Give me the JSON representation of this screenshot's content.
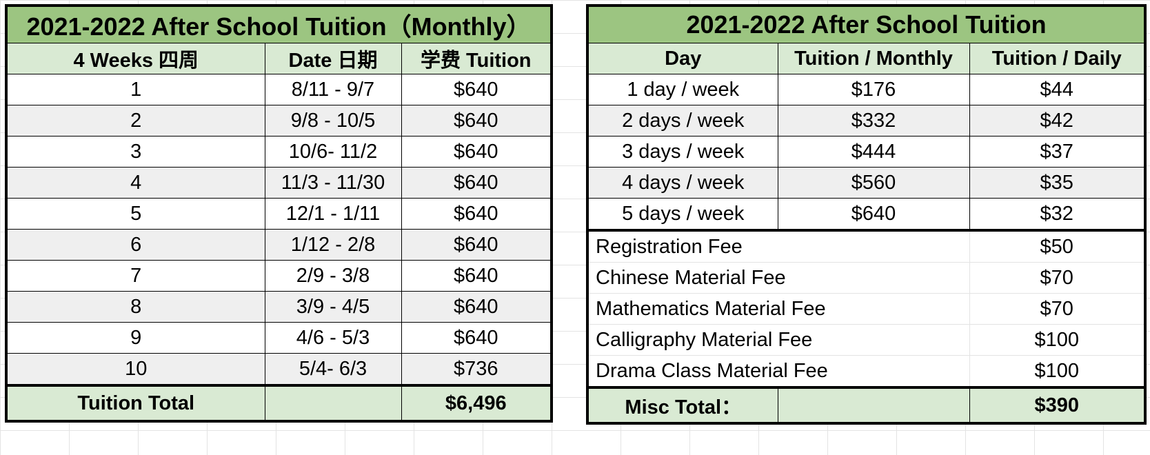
{
  "monthly_table": {
    "title": "2021-2022 After School Tuition（Monthly）",
    "headers": [
      "4 Weeks 四周",
      "Date 日期",
      "学费 Tuition"
    ],
    "rows": [
      {
        "week": "1",
        "date": "8/11 - 9/7",
        "tuition": "$640"
      },
      {
        "week": "2",
        "date": "9/8 - 10/5",
        "tuition": "$640"
      },
      {
        "week": "3",
        "date": "10/6- 11/2",
        "tuition": "$640"
      },
      {
        "week": "4",
        "date": "11/3 - 11/30",
        "tuition": "$640"
      },
      {
        "week": "5",
        "date": "12/1 - 1/11",
        "tuition": "$640"
      },
      {
        "week": "6",
        "date": "1/12 - 2/8",
        "tuition": "$640"
      },
      {
        "week": "7",
        "date": "2/9 - 3/8",
        "tuition": "$640"
      },
      {
        "week": "8",
        "date": "3/9 - 4/5",
        "tuition": "$640"
      },
      {
        "week": "9",
        "date": "4/6 - 5/3",
        "tuition": "$640"
      },
      {
        "week": "10",
        "date": "5/4- 6/3",
        "tuition": "$736"
      }
    ],
    "total_label": "Tuition Total",
    "total_value": "$6,496"
  },
  "rates_table": {
    "title": "2021-2022 After School Tuition",
    "headers": [
      "Day",
      "Tuition / Monthly",
      "Tuition / Daily"
    ],
    "rows": [
      {
        "day": "1 day / week",
        "monthly": "$176",
        "daily": "$44"
      },
      {
        "day": "2 days / week",
        "monthly": "$332",
        "daily": "$42"
      },
      {
        "day": "3 days / week",
        "monthly": "$444",
        "daily": "$37"
      },
      {
        "day": "4 days / week",
        "monthly": "$560",
        "daily": "$35"
      },
      {
        "day": "5 days / week",
        "monthly": "$640",
        "daily": "$32"
      }
    ],
    "fees": [
      {
        "label": "Registration Fee",
        "amount": "$50"
      },
      {
        "label": "Chinese Material Fee",
        "amount": "$70"
      },
      {
        "label": "Mathematics Material Fee",
        "amount": "$70"
      },
      {
        "label": "Calligraphy Material Fee",
        "amount": "$100"
      },
      {
        "label": "Drama Class Material Fee",
        "amount": "$100"
      }
    ],
    "total_label": "Misc Total：",
    "total_value": "$390"
  }
}
